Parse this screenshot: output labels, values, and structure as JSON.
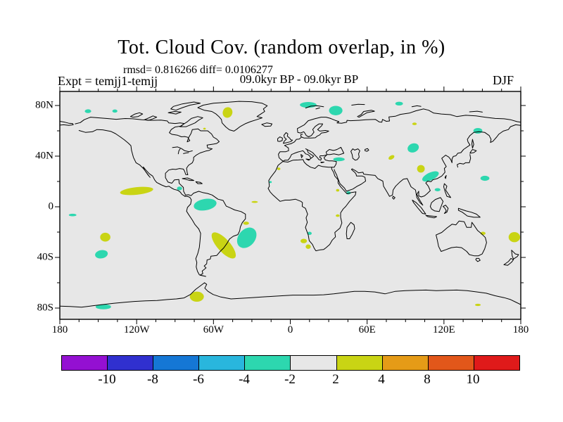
{
  "figure": {
    "title": "Tot. Cloud Cov. (random overlap, in %)",
    "stats_line": "rmsd= 0.816266 diff= 0.0106277",
    "period_line": "09.0kyr BP - 09.0kyr BP",
    "experiment_label": "Expt = temjj1-temjj",
    "season_label": "DJF"
  },
  "chart_data": {
    "type": "heatmap",
    "subtype": "filled-contour difference map on equirectangular world projection",
    "title": "Tot. Cloud Cov. (random overlap, in %)",
    "rmsd": 0.816266,
    "diff": 0.0106277,
    "period": "09.0kyr BP - 09.0kyr BP",
    "experiment": "temjj1-temjj",
    "season": "DJF",
    "units": "%",
    "map_background": "#e7e7e7",
    "coastline_color": "#000000",
    "axes": {
      "x": {
        "major_lons": [
          -180,
          -120,
          -60,
          0,
          60,
          120,
          180
        ],
        "labels": [
          "180",
          "120W",
          "60W",
          "0",
          "60E",
          "120E",
          "180"
        ],
        "minor_step_deg": 15
      },
      "y": {
        "major_lats": [
          80,
          40,
          0,
          -40,
          -80
        ],
        "labels": [
          "80N",
          "40N",
          "0",
          "40S",
          "80S"
        ],
        "minor_lats": [
          60,
          20,
          -20,
          -60
        ]
      }
    },
    "colorbar": {
      "boundary_labels": [
        "-10",
        "-8",
        "-6",
        "-4",
        "-2",
        "2",
        "4",
        "8",
        "10"
      ],
      "segment_colors": [
        "#9410d2",
        "#3030cf",
        "#1577d5",
        "#29b6dd",
        "#2dd7af",
        "#e7e7e7",
        "#c9d414",
        "#e59b17",
        "#e2571a",
        "#df1a1a"
      ],
      "negative_patch_level": "-4 to -2",
      "positive_patch_level": "2 to 4"
    },
    "anomaly_patches": [
      {
        "lon": -158,
        "lat": 75.5,
        "w": 5,
        "h": 3,
        "rot": 0,
        "sign": "negative"
      },
      {
        "lon": -137,
        "lat": 75.6,
        "w": 4,
        "h": 2.5,
        "rot": 0,
        "sign": "negative"
      },
      {
        "lon": -86.5,
        "lat": 14.5,
        "w": 4,
        "h": 3,
        "rot": 0,
        "sign": "negative"
      },
      {
        "lon": -66.5,
        "lat": 1.7,
        "w": 18,
        "h": 9,
        "rot": -10,
        "sign": "negative"
      },
      {
        "lon": -147.5,
        "lat": -37.5,
        "w": 10,
        "h": 6.5,
        "rot": -10,
        "sign": "negative"
      },
      {
        "lon": -34,
        "lat": -24.5,
        "w": 13,
        "h": 18,
        "rot": 40,
        "sign": "negative"
      },
      {
        "lon": -146,
        "lat": -79,
        "w": 12,
        "h": 4,
        "rot": 0,
        "sign": "negative"
      },
      {
        "lon": -170,
        "lat": -6.5,
        "w": 6,
        "h": 2,
        "rot": 0,
        "sign": "negative"
      },
      {
        "lon": 14,
        "lat": 80.5,
        "w": 13,
        "h": 4.5,
        "rot": 0,
        "sign": "negative"
      },
      {
        "lon": 35.5,
        "lat": 76,
        "w": 10.5,
        "h": 7.5,
        "rot": 0,
        "sign": "negative"
      },
      {
        "lon": 85,
        "lat": 81.5,
        "w": 6,
        "h": 3,
        "rot": 0,
        "sign": "negative"
      },
      {
        "lon": 146.5,
        "lat": 60,
        "w": 7,
        "h": 4.5,
        "rot": 0,
        "sign": "negative"
      },
      {
        "lon": 96,
        "lat": 46.5,
        "w": 9,
        "h": 7,
        "rot": -20,
        "sign": "negative"
      },
      {
        "lon": 109.5,
        "lat": 24,
        "w": 14,
        "h": 6,
        "rot": -25,
        "sign": "negative"
      },
      {
        "lon": 152,
        "lat": 22.5,
        "w": 7,
        "h": 4,
        "rot": 0,
        "sign": "negative"
      },
      {
        "lon": 115,
        "lat": 13.5,
        "w": 4.5,
        "h": 2.5,
        "rot": 0,
        "sign": "negative"
      },
      {
        "lon": 38,
        "lat": 37.5,
        "w": 9,
        "h": 3,
        "rot": 0,
        "sign": "negative"
      },
      {
        "lon": 45.5,
        "lat": 11,
        "w": 3.5,
        "h": 2.5,
        "rot": 0,
        "sign": "negative"
      },
      {
        "lon": 15,
        "lat": -21,
        "w": 3.5,
        "h": 2.5,
        "rot": 0,
        "sign": "negative"
      },
      {
        "lon": -15.5,
        "lat": 19.5,
        "w": 2,
        "h": 1.7,
        "rot": 0,
        "sign": "negative"
      },
      {
        "lon": -49,
        "lat": 74.5,
        "w": 7.5,
        "h": 8.5,
        "rot": 20,
        "sign": "positive"
      },
      {
        "lon": -120,
        "lat": 12.5,
        "w": 26,
        "h": 6,
        "rot": -6,
        "sign": "positive"
      },
      {
        "lon": -144.5,
        "lat": -24,
        "w": 8,
        "h": 7,
        "rot": 0,
        "sign": "positive"
      },
      {
        "lon": -52,
        "lat": -30.5,
        "w": 26,
        "h": 10,
        "rot": 48,
        "sign": "positive"
      },
      {
        "lon": -34.5,
        "lat": -13,
        "w": 4.5,
        "h": 2.5,
        "rot": 0,
        "sign": "positive"
      },
      {
        "lon": -73,
        "lat": -71,
        "w": 11,
        "h": 8,
        "rot": 0,
        "sign": "positive"
      },
      {
        "lon": -67,
        "lat": 61.7,
        "w": 2,
        "h": 1.5,
        "rot": 0,
        "sign": "positive"
      },
      {
        "lon": 97,
        "lat": 65.5,
        "w": 3.5,
        "h": 2,
        "rot": 0,
        "sign": "positive"
      },
      {
        "lon": 79,
        "lat": 39,
        "w": 5,
        "h": 3,
        "rot": -30,
        "sign": "positive"
      },
      {
        "lon": 102,
        "lat": 30,
        "w": 6,
        "h": 6,
        "rot": 0,
        "sign": "positive"
      },
      {
        "lon": 37,
        "lat": 13,
        "w": 2.5,
        "h": 2,
        "rot": 0,
        "sign": "positive"
      },
      {
        "lon": 10.5,
        "lat": -27,
        "w": 5,
        "h": 3.5,
        "rot": 0,
        "sign": "positive"
      },
      {
        "lon": 14,
        "lat": -31.5,
        "w": 4,
        "h": 3.5,
        "rot": 0,
        "sign": "positive"
      },
      {
        "lon": 37,
        "lat": -7,
        "w": 3,
        "h": 2,
        "rot": 0,
        "sign": "positive"
      },
      {
        "lon": 150.5,
        "lat": -21,
        "w": 4,
        "h": 2.5,
        "rot": 0,
        "sign": "positive"
      },
      {
        "lon": 175,
        "lat": -24,
        "w": 9,
        "h": 8,
        "rot": 0,
        "sign": "positive"
      },
      {
        "lon": 146.5,
        "lat": -77.5,
        "w": 4.5,
        "h": 1.8,
        "rot": 0,
        "sign": "positive"
      },
      {
        "lon": -9,
        "lat": 30,
        "w": 2.5,
        "h": 2,
        "rot": 0,
        "sign": "positive"
      },
      {
        "lon": -27.8,
        "lat": 3.8,
        "w": 5,
        "h": 1.5,
        "rot": 0,
        "sign": "positive"
      }
    ]
  }
}
